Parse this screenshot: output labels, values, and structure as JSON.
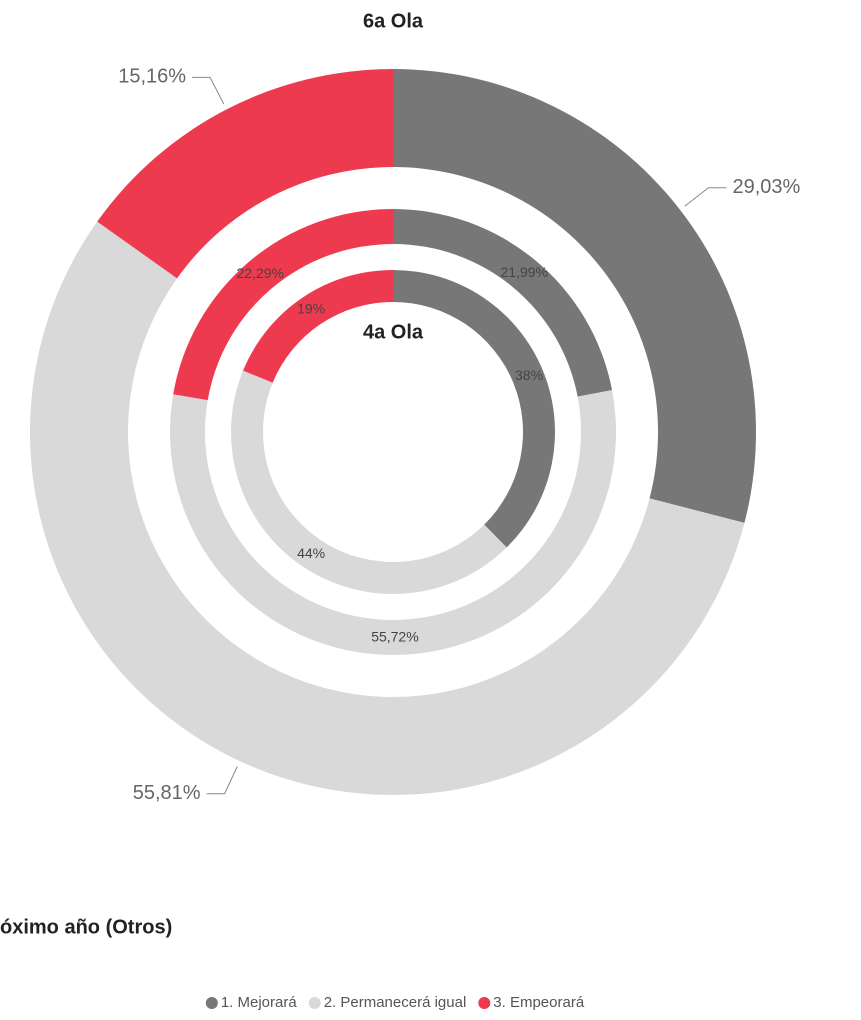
{
  "chart_data": {
    "type": "donut",
    "title": "óximo año (Otros)",
    "categories": [
      "1. Mejorará",
      "2. Permanecerá igual",
      "3. Empeorará"
    ],
    "colors": [
      "#777777",
      "#d9d9d9",
      "#ee3a4f"
    ],
    "series": [
      {
        "name": "6a Ola",
        "values": [
          29.03,
          55.81,
          15.16
        ],
        "value_labels": [
          "29,03%",
          "55,81%",
          "15,16%"
        ]
      },
      {
        "values": [
          21.99,
          55.72,
          22.29
        ],
        "value_labels": [
          "21,99%",
          "55,72%",
          "22,29%"
        ]
      },
      {
        "name": "4a Ola",
        "values": [
          38,
          44,
          19
        ],
        "value_labels": [
          "38%",
          "44%",
          "19%"
        ]
      }
    ]
  }
}
